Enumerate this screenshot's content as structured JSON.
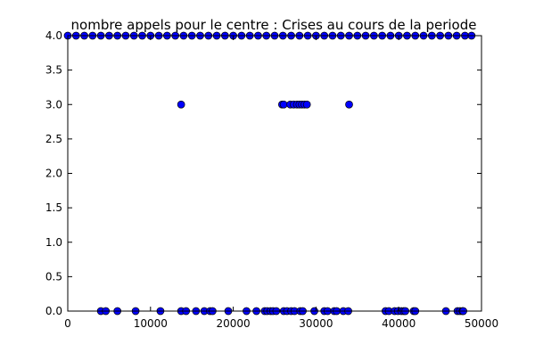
{
  "chart_data": {
    "type": "scatter",
    "title": "nombre appels pour le centre : Crises au cours de la periode",
    "xlabel": "",
    "ylabel": "",
    "xlim": [
      0,
      50000
    ],
    "ylim": [
      0,
      4.0
    ],
    "x_ticks": [
      0,
      10000,
      20000,
      30000,
      40000,
      50000
    ],
    "x_tick_labels": [
      "0",
      "10000",
      "20000",
      "30000",
      "40000",
      "50000"
    ],
    "y_ticks": [
      0.0,
      0.5,
      1.0,
      1.5,
      2.0,
      2.5,
      3.0,
      3.5,
      4.0
    ],
    "y_tick_labels": [
      "0.0",
      "0.5",
      "1.0",
      "1.5",
      "2.0",
      "2.5",
      "3.0",
      "3.5",
      "4.0"
    ],
    "grid": false,
    "legend": "none",
    "marker_color": "#0000ff",
    "series": [
      {
        "points": [
          [
            4000,
            0
          ],
          [
            4600,
            0
          ],
          [
            6000,
            0
          ],
          [
            8200,
            0
          ],
          [
            11200,
            0
          ],
          [
            13700,
            0
          ],
          [
            14300,
            0
          ],
          [
            15500,
            0
          ],
          [
            16500,
            0
          ],
          [
            17200,
            0
          ],
          [
            17500,
            0
          ],
          [
            19400,
            0
          ],
          [
            21600,
            0
          ],
          [
            22800,
            0
          ],
          [
            23800,
            0
          ],
          [
            24100,
            0
          ],
          [
            24500,
            0
          ],
          [
            24800,
            0
          ],
          [
            25200,
            0
          ],
          [
            26100,
            0
          ],
          [
            26500,
            0
          ],
          [
            27000,
            0
          ],
          [
            27400,
            0
          ],
          [
            28100,
            0
          ],
          [
            28400,
            0
          ],
          [
            29800,
            0
          ],
          [
            31000,
            0
          ],
          [
            31400,
            0
          ],
          [
            32200,
            0
          ],
          [
            32500,
            0
          ],
          [
            33300,
            0
          ],
          [
            33900,
            0
          ],
          [
            38400,
            0
          ],
          [
            38800,
            0
          ],
          [
            39500,
            0
          ],
          [
            39900,
            0
          ],
          [
            40300,
            0
          ],
          [
            40600,
            0
          ],
          [
            40800,
            0
          ],
          [
            41800,
            0
          ],
          [
            42000,
            0
          ],
          [
            45700,
            0
          ],
          [
            47100,
            0
          ],
          [
            47400,
            0
          ],
          [
            47700,
            0
          ],
          [
            47800,
            0
          ],
          [
            13700,
            3
          ],
          [
            25900,
            3
          ],
          [
            26100,
            3
          ],
          [
            26900,
            3
          ],
          [
            27300,
            3
          ],
          [
            27700,
            3
          ],
          [
            28000,
            3
          ],
          [
            28300,
            3
          ],
          [
            28600,
            3
          ],
          [
            28900,
            3
          ],
          [
            34000,
            3
          ],
          [
            0,
            4
          ],
          [
            1000,
            4
          ],
          [
            2000,
            4
          ],
          [
            3000,
            4
          ],
          [
            4000,
            4
          ],
          [
            5000,
            4
          ],
          [
            6000,
            4
          ],
          [
            7000,
            4
          ],
          [
            8000,
            4
          ],
          [
            9000,
            4
          ],
          [
            10000,
            4
          ],
          [
            11000,
            4
          ],
          [
            12000,
            4
          ],
          [
            13000,
            4
          ],
          [
            14000,
            4
          ],
          [
            15000,
            4
          ],
          [
            16000,
            4
          ],
          [
            17000,
            4
          ],
          [
            18000,
            4
          ],
          [
            19000,
            4
          ],
          [
            20000,
            4
          ],
          [
            21000,
            4
          ],
          [
            22000,
            4
          ],
          [
            23000,
            4
          ],
          [
            24000,
            4
          ],
          [
            25000,
            4
          ],
          [
            26000,
            4
          ],
          [
            27000,
            4
          ],
          [
            28000,
            4
          ],
          [
            29000,
            4
          ],
          [
            30000,
            4
          ],
          [
            31000,
            4
          ],
          [
            32000,
            4
          ],
          [
            33000,
            4
          ],
          [
            34000,
            4
          ],
          [
            35000,
            4
          ],
          [
            36000,
            4
          ],
          [
            37000,
            4
          ],
          [
            38000,
            4
          ],
          [
            39000,
            4
          ],
          [
            40000,
            4
          ],
          [
            41000,
            4
          ],
          [
            42000,
            4
          ],
          [
            43000,
            4
          ],
          [
            44000,
            4
          ],
          [
            45000,
            4
          ],
          [
            46000,
            4
          ],
          [
            47000,
            4
          ],
          [
            48000,
            4
          ],
          [
            48800,
            4
          ]
        ]
      }
    ]
  }
}
